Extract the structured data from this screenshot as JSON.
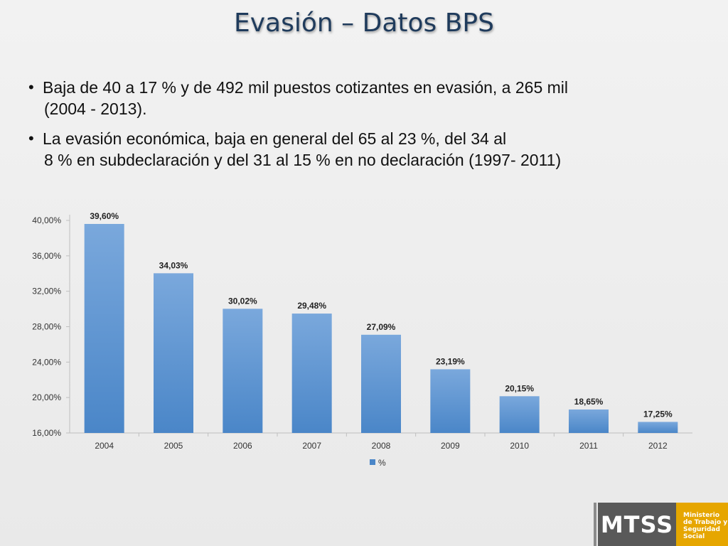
{
  "slide": {
    "title": "Evasión – Datos BPS",
    "bullets": [
      {
        "lines": [
          "Baja de 40 a 17 % y de 492 mil puestos cotizantes en evasión, a 265 mil",
          "(2004 - 2013)."
        ]
      },
      {
        "lines": [
          "La evasión económica, baja en general del 65 al 23 %, del 34 al",
          "8 % en subdeclaración y del 31 al 15 % en no declaración (1997- 2011)"
        ]
      }
    ]
  },
  "chart_data": {
    "type": "bar",
    "categories": [
      "2004",
      "2005",
      "2006",
      "2007",
      "2008",
      "2009",
      "2010",
      "2011",
      "2012"
    ],
    "series": [
      {
        "name": "%",
        "values": [
          39.6,
          34.03,
          30.02,
          29.48,
          27.09,
          23.19,
          20.15,
          18.65,
          17.25
        ]
      }
    ],
    "data_labels": [
      "39,60%",
      "34,03%",
      "30,02%",
      "29,48%",
      "27,09%",
      "23,19%",
      "20,15%",
      "18,65%",
      "17,25%"
    ],
    "y_ticks": [
      16,
      20,
      24,
      28,
      32,
      36,
      40
    ],
    "y_tick_labels": [
      "16,00%",
      "20,00%",
      "24,00%",
      "28,00%",
      "32,00%",
      "36,00%",
      "40,00%"
    ],
    "ylim": [
      16,
      40
    ],
    "grid": false,
    "legend_position": "bottom",
    "colors": {
      "bar_top": "#7aa8dc",
      "bar_bottom": "#4a86c8",
      "axis": "#bfbfbf"
    }
  },
  "logo": {
    "main": "MTSS",
    "text_lines": [
      "Ministerio",
      "de Trabajo y",
      "Seguridad",
      "Social"
    ]
  }
}
